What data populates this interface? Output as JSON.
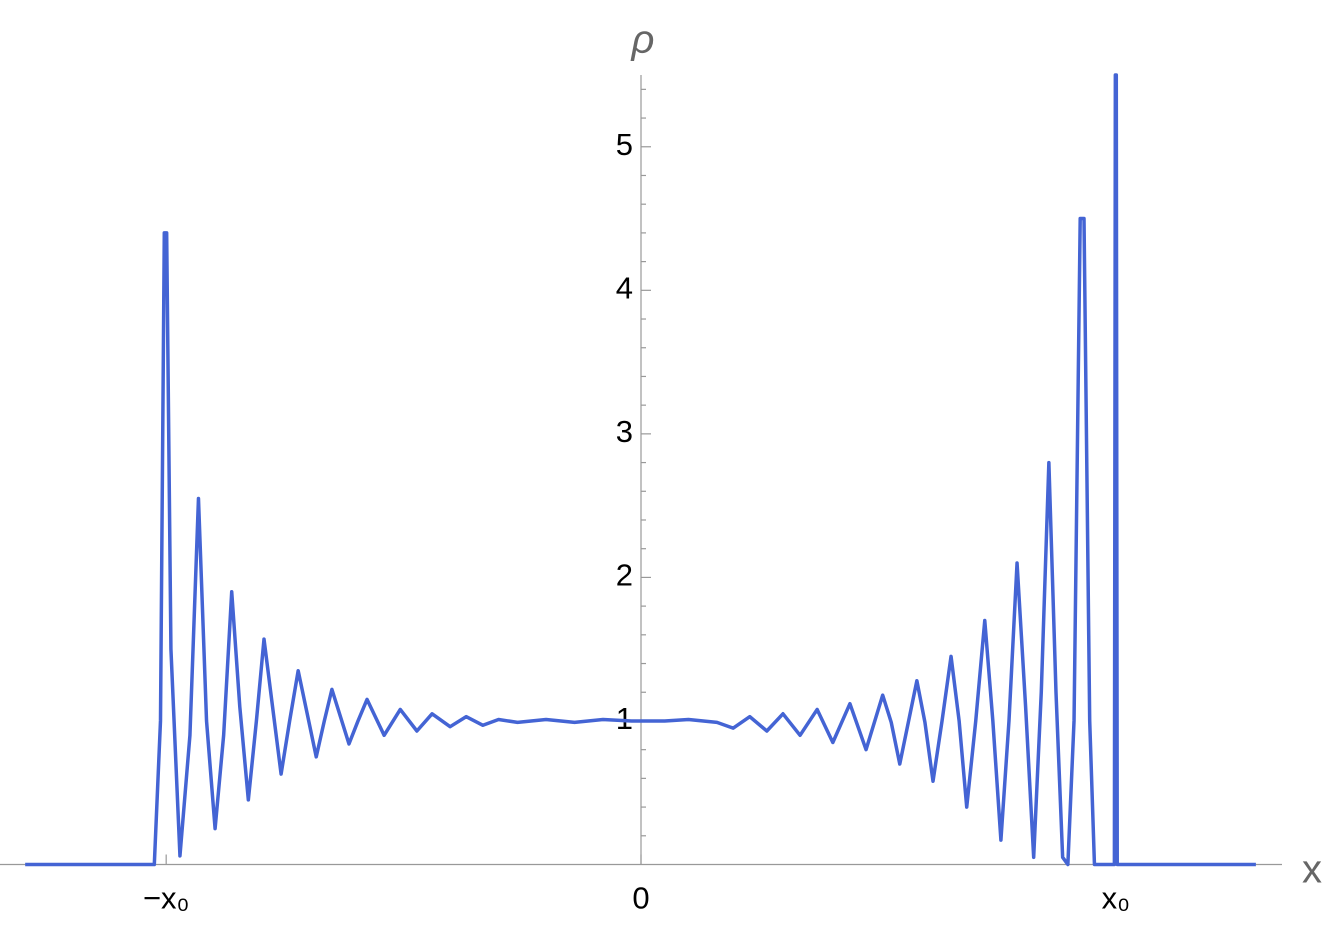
{
  "chart_data": {
    "type": "line",
    "x_label": "x",
    "y_label": "ρ",
    "xlim": [
      -1.35,
      1.35
    ],
    "ylim": [
      0,
      5.5
    ],
    "xticks": [
      {
        "value": -1,
        "label": "−x₀"
      },
      0,
      {
        "value": 1,
        "label": "x₀"
      }
    ],
    "yticks": [
      1,
      2,
      3,
      4,
      5
    ],
    "yminorticks": [
      0.2,
      0.4,
      0.6,
      0.8,
      1.2,
      1.4,
      1.6,
      1.8,
      2.2,
      2.4,
      2.6,
      2.8,
      3.2,
      3.4,
      3.6,
      3.8,
      4.2,
      4.4,
      4.6,
      4.8,
      5.2,
      5.4
    ],
    "series": [
      {
        "name": "ρ",
        "color": "#4464d4",
        "x": [
          -1.297,
          -1.025,
          -1.012,
          -1.004,
          -0.999,
          -0.99,
          -0.971,
          -0.95,
          -0.932,
          -0.915,
          -0.897,
          -0.879,
          -0.862,
          -0.845,
          -0.827,
          -0.81,
          -0.794,
          -0.776,
          -0.758,
          -0.74,
          -0.722,
          -0.703,
          -0.684,
          -0.667,
          -0.651,
          -0.633,
          -0.615,
          -0.596,
          -0.577,
          -0.541,
          -0.507,
          -0.472,
          -0.44,
          -0.402,
          -0.368,
          -0.333,
          -0.3,
          -0.26,
          -0.2,
          -0.14,
          -0.08,
          -0.02,
          0.05,
          0.1,
          0.16,
          0.194,
          0.229,
          0.265,
          0.299,
          0.335,
          0.371,
          0.404,
          0.44,
          0.474,
          0.509,
          0.527,
          0.545,
          0.563,
          0.581,
          0.598,
          0.615,
          0.634,
          0.653,
          0.67,
          0.686,
          0.705,
          0.724,
          0.741,
          0.758,
          0.775,
          0.792,
          0.81,
          0.827,
          0.843,
          0.859,
          0.874,
          0.888,
          0.899,
          0.912,
          0.925,
          0.933,
          0.945,
          0.955,
          0.997,
          0.999,
          1.001,
          1.003,
          1.295
        ],
        "values": [
          0,
          0,
          1.0,
          4.4,
          4.4,
          1.5,
          0.06,
          0.9,
          2.55,
          1.0,
          0.25,
          0.9,
          1.9,
          1.1,
          0.45,
          1.0,
          1.57,
          1.1,
          0.63,
          1.0,
          1.35,
          1.05,
          0.75,
          1.0,
          1.22,
          1.03,
          0.84,
          1.0,
          1.15,
          0.9,
          1.08,
          0.93,
          1.05,
          0.96,
          1.03,
          0.97,
          1.01,
          0.99,
          1.01,
          0.99,
          1.01,
          1.0,
          1.0,
          1.01,
          0.99,
          0.95,
          1.03,
          0.93,
          1.05,
          0.9,
          1.08,
          0.85,
          1.12,
          0.8,
          1.18,
          0.99,
          0.7,
          0.99,
          1.28,
          0.99,
          0.58,
          1.0,
          1.45,
          1.0,
          0.4,
          1.0,
          1.7,
          1.0,
          0.17,
          1.0,
          2.1,
          1.1,
          0.05,
          1.2,
          2.8,
          1.2,
          0.05,
          0,
          1.0,
          4.5,
          4.5,
          1.0,
          0,
          0,
          5.5,
          5.5,
          0,
          0
        ]
      }
    ]
  }
}
